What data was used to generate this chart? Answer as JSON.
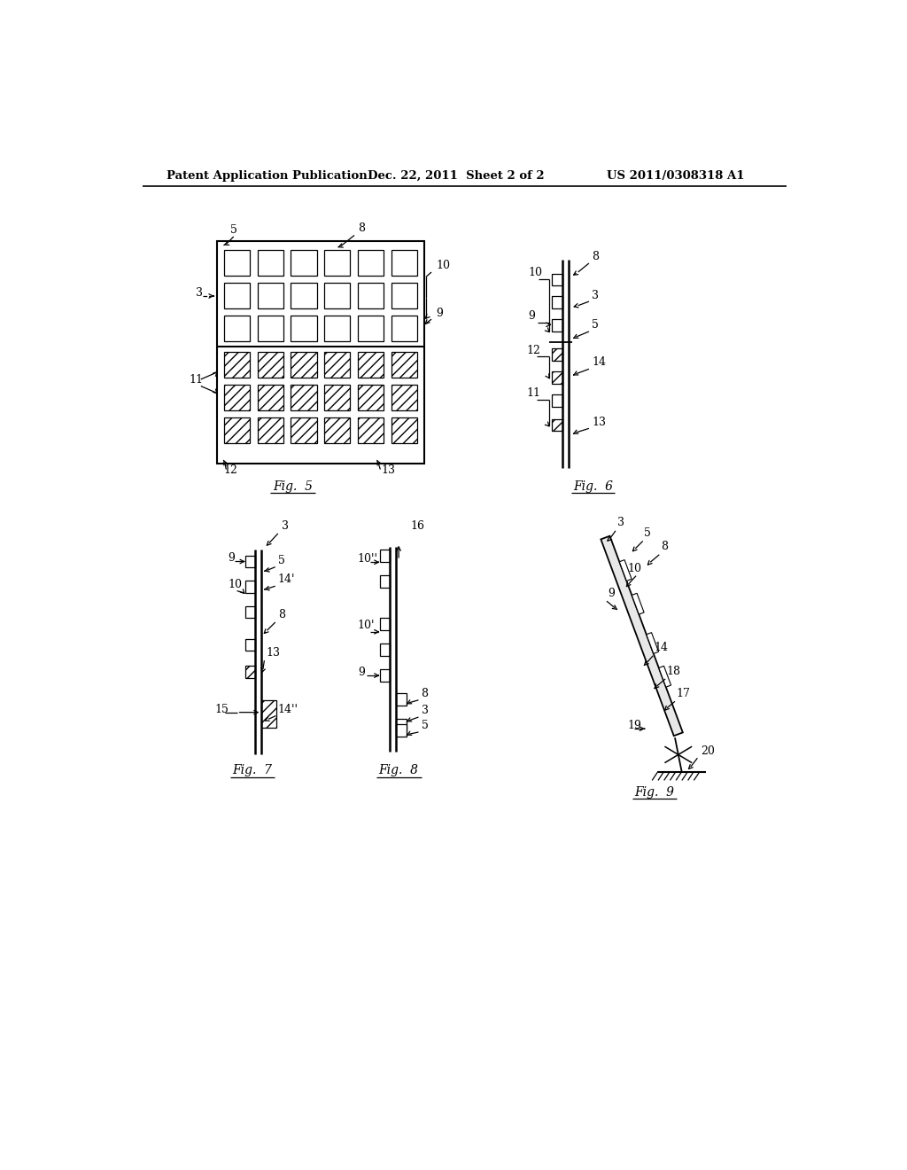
{
  "header_left": "Patent Application Publication",
  "header_mid": "Dec. 22, 2011  Sheet 2 of 2",
  "header_right": "US 2011/0308318 A1",
  "bg_color": "#ffffff",
  "line_color": "#000000",
  "fig5_label": "Fig.  5",
  "fig6_label": "Fig.  6",
  "fig7_label": "Fig.  7",
  "fig8_label": "Fig.  8",
  "fig9_label": "Fig.  9"
}
